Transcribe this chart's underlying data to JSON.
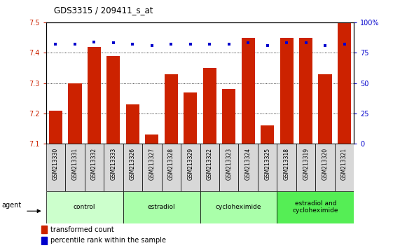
{
  "title": "GDS3315 / 209411_s_at",
  "samples": [
    "GSM213330",
    "GSM213331",
    "GSM213332",
    "GSM213333",
    "GSM213326",
    "GSM213327",
    "GSM213328",
    "GSM213329",
    "GSM213322",
    "GSM213323",
    "GSM213324",
    "GSM213325",
    "GSM213318",
    "GSM213319",
    "GSM213320",
    "GSM213321"
  ],
  "bar_values": [
    7.21,
    7.3,
    7.42,
    7.39,
    7.23,
    7.13,
    7.33,
    7.27,
    7.35,
    7.28,
    7.45,
    7.16,
    7.45,
    7.45,
    7.33,
    7.5
  ],
  "dot_values": [
    82,
    82,
    84,
    83,
    82,
    81,
    82,
    82,
    82,
    82,
    83,
    81,
    83,
    83,
    81,
    82
  ],
  "bar_color": "#cc2200",
  "dot_color": "#0000cc",
  "ylim_left": [
    7.1,
    7.5
  ],
  "ylim_right": [
    0,
    100
  ],
  "yticks_left": [
    7.1,
    7.2,
    7.3,
    7.4,
    7.5
  ],
  "yticks_right": [
    0,
    25,
    50,
    75,
    100
  ],
  "groups": [
    {
      "label": "control",
      "start": 0,
      "end": 4,
      "color": "#ccffcc"
    },
    {
      "label": "estradiol",
      "start": 4,
      "end": 8,
      "color": "#aaffaa"
    },
    {
      "label": "cycloheximide",
      "start": 8,
      "end": 12,
      "color": "#aaffaa"
    },
    {
      "label": "estradiol and\ncycloheximide",
      "start": 12,
      "end": 16,
      "color": "#55ee55"
    }
  ],
  "legend_bar_label": "transformed count",
  "legend_dot_label": "percentile rank within the sample",
  "agent_label": "agent",
  "background_color": "#ffffff",
  "grid_color": "#000000",
  "tick_label_color_left": "#cc2200",
  "tick_label_color_right": "#0000cc",
  "tick_bg_color": "#d8d8d8"
}
